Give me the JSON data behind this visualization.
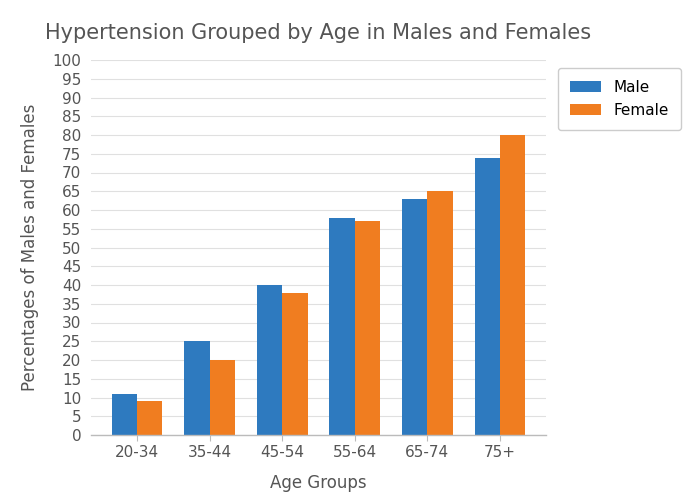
{
  "title": "Hypertension Grouped by Age in Males and Females",
  "xlabel": "Age Groups",
  "ylabel": "Percentages of Males and Females",
  "categories": [
    "20-34",
    "35-44",
    "45-54",
    "55-64",
    "65-74",
    "75+"
  ],
  "male_values": [
    11,
    25,
    40,
    58,
    63,
    74
  ],
  "female_values": [
    9,
    20,
    38,
    57,
    65,
    80
  ],
  "male_color": "#2e7abf",
  "female_color": "#f07d20",
  "ylim": [
    0,
    100
  ],
  "yticks": [
    0,
    5,
    10,
    15,
    20,
    25,
    30,
    35,
    40,
    45,
    50,
    55,
    60,
    65,
    70,
    75,
    80,
    85,
    90,
    95,
    100
  ],
  "bar_width": 0.35,
  "legend_labels": [
    "Male",
    "Female"
  ],
  "background_color": "#ffffff",
  "title_fontsize": 15,
  "label_fontsize": 12,
  "tick_fontsize": 11
}
